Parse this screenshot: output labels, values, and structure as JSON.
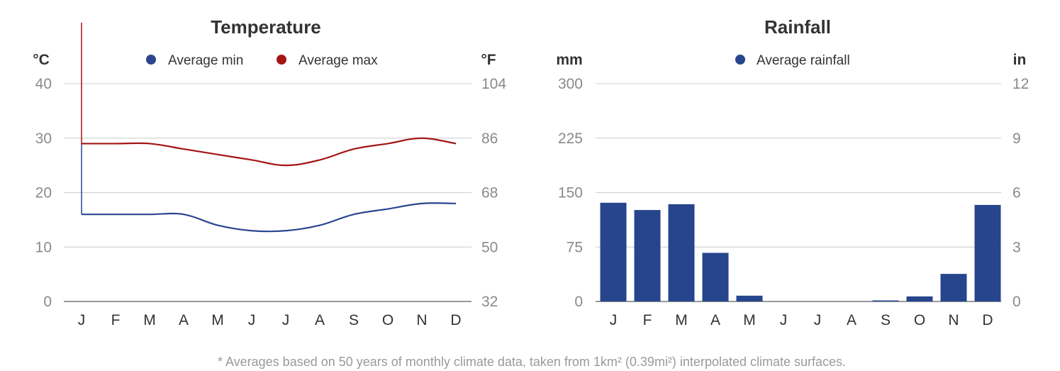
{
  "colors": {
    "min": "#2b4590",
    "max": "#a31515",
    "rain": "#27458d",
    "grid": "#cccccc",
    "axis": "#333333"
  },
  "footnote": "* Averages based on 50 years of monthly climate data, taken from 1km² (0.39mi²) interpolated climate surfaces.",
  "chart_data": [
    {
      "type": "line",
      "title": "Temperature",
      "left_unit": "°C",
      "right_unit": "°F",
      "categories": [
        "J",
        "F",
        "M",
        "A",
        "M",
        "J",
        "J",
        "A",
        "S",
        "O",
        "N",
        "D"
      ],
      "ylim": [
        0,
        40
      ],
      "left_ticks": [
        "0",
        "10",
        "20",
        "30",
        "40"
      ],
      "right_ticks": [
        "32",
        "50",
        "68",
        "86",
        "104"
      ],
      "grid": true,
      "legend_position": "top",
      "series": [
        {
          "name": "Average min",
          "color": "#2b4590",
          "values": [
            16,
            16,
            16,
            16,
            14,
            13,
            13,
            14,
            16,
            17,
            18,
            18
          ]
        },
        {
          "name": "Average max",
          "color": "#a31515",
          "values": [
            29,
            29,
            29,
            28,
            27,
            26,
            25,
            26,
            28,
            29,
            30,
            29
          ]
        }
      ]
    },
    {
      "type": "bar",
      "title": "Rainfall",
      "left_unit": "mm",
      "right_unit": "in",
      "categories": [
        "J",
        "F",
        "M",
        "A",
        "M",
        "J",
        "J",
        "A",
        "S",
        "O",
        "N",
        "D"
      ],
      "ylim": [
        0,
        300
      ],
      "left_ticks": [
        "0",
        "75",
        "150",
        "225",
        "300"
      ],
      "right_ticks": [
        "0",
        "3",
        "6",
        "9",
        "12"
      ],
      "grid": true,
      "legend_position": "top",
      "series": [
        {
          "name": "Average rainfall",
          "color": "#27458d",
          "values": [
            136,
            126,
            134,
            67,
            8,
            0,
            0,
            0,
            1,
            7,
            38,
            133
          ]
        }
      ]
    }
  ]
}
